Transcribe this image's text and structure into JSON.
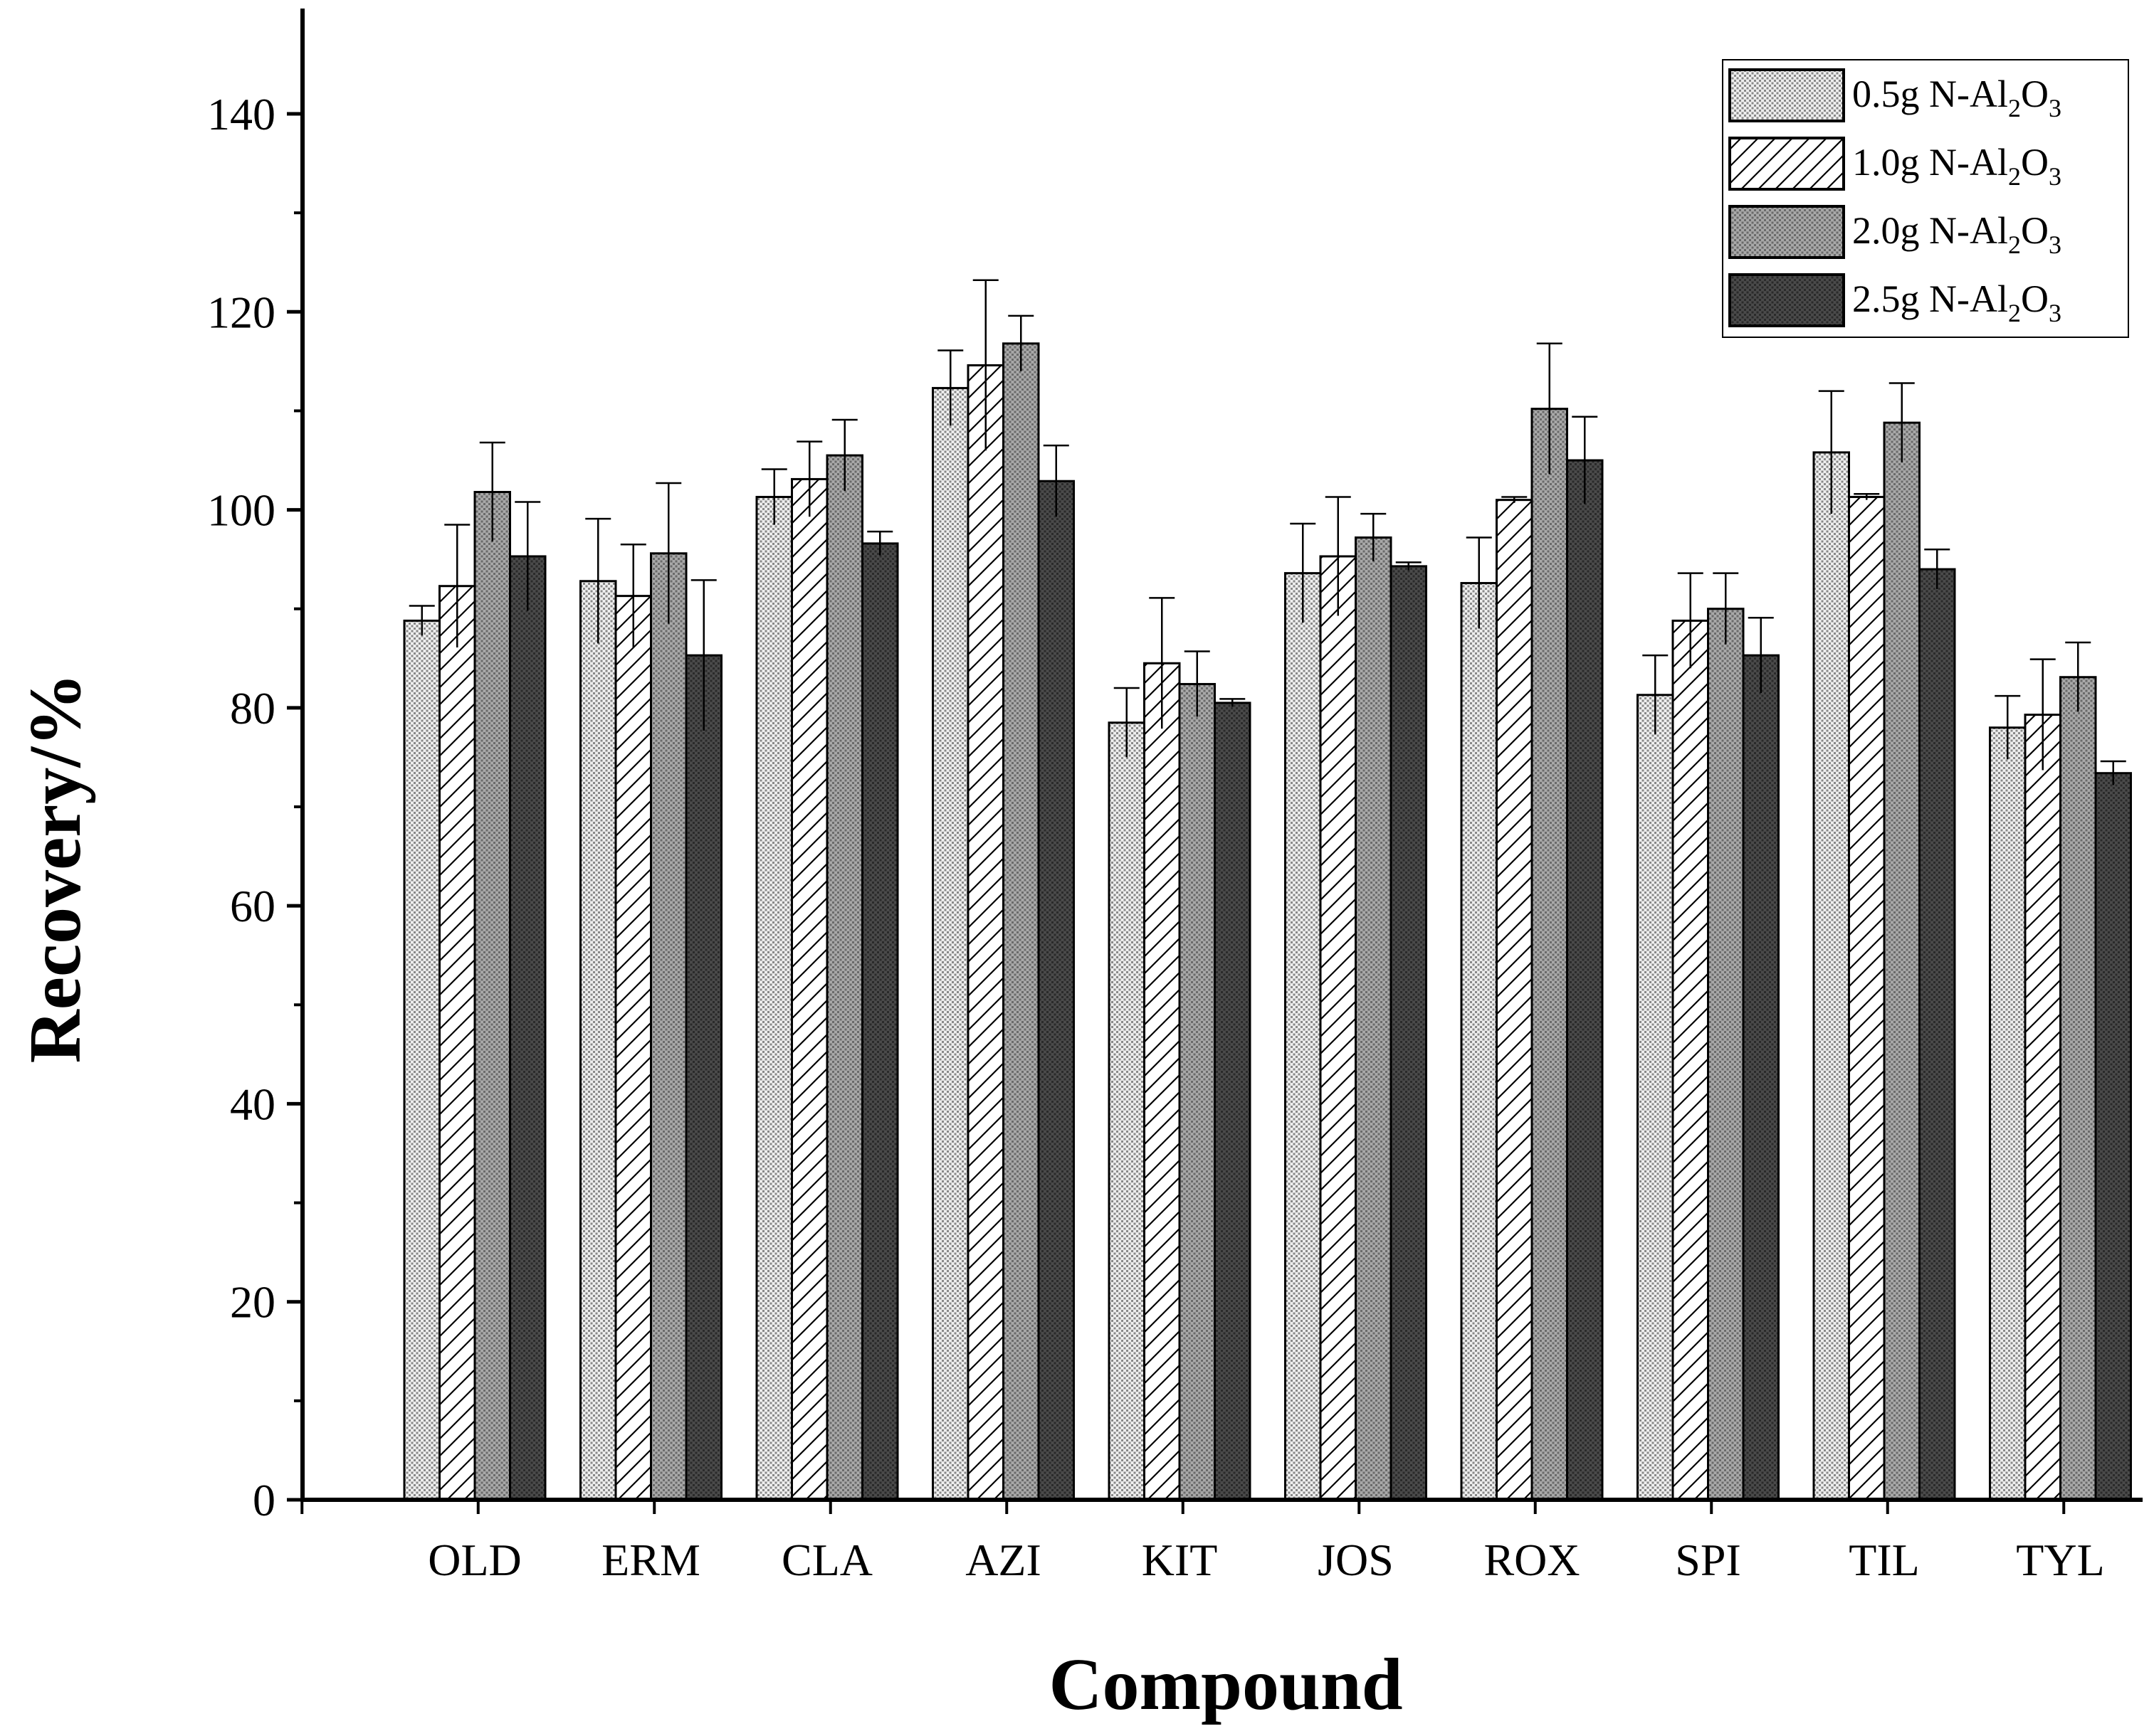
{
  "chart_data": {
    "type": "bar",
    "title": "",
    "xlabel": "Compound",
    "ylabel": "Recovery/%",
    "ylim": [
      0,
      150
    ],
    "yticks": [
      "0",
      "20",
      "40",
      "60",
      "80",
      "100",
      "120",
      "140"
    ],
    "categories": [
      "OLD",
      "ERM",
      "CLA",
      "AZI",
      "KIT",
      "JOS",
      "ROX",
      "SPI",
      "TIL",
      "TYL"
    ],
    "legend_position": "top-right",
    "grid": false,
    "series": [
      {
        "name": "0.5g N-Al2O3",
        "label_main": "0.5g N-Al",
        "label_sub1": "2",
        "label_mid": "O",
        "label_sub2": "3",
        "pattern": "fine-dots",
        "values": [
          88.8,
          92.8,
          101.3,
          112.3,
          78.5,
          93.6,
          92.6,
          81.3,
          105.8,
          78.0
        ],
        "errors": [
          1.5,
          6.3,
          2.8,
          3.8,
          3.5,
          5.0,
          4.6,
          4.0,
          6.2,
          3.2
        ]
      },
      {
        "name": "1.0g N-Al2O3",
        "label_main": "1.0g N-Al",
        "label_sub1": "2",
        "label_mid": "O",
        "label_sub2": "3",
        "pattern": "diagonal-hatch",
        "values": [
          92.3,
          91.3,
          103.1,
          114.6,
          84.5,
          95.3,
          101.0,
          88.8,
          101.3,
          79.3
        ],
        "errors": [
          6.2,
          5.2,
          3.8,
          8.6,
          6.6,
          6.0,
          0.3,
          4.8,
          0.3,
          5.6
        ]
      },
      {
        "name": "2.0g N-Al2O3",
        "label_main": "2.0g N-Al",
        "label_sub1": "2",
        "label_mid": "O",
        "label_sub2": "3",
        "pattern": "medium-dots",
        "values": [
          101.8,
          95.6,
          105.5,
          116.8,
          82.4,
          97.2,
          110.2,
          90.0,
          108.8,
          83.1
        ],
        "errors": [
          5.0,
          7.1,
          3.6,
          2.8,
          3.3,
          2.4,
          6.6,
          3.6,
          4.0,
          3.5
        ]
      },
      {
        "name": "2.5g N-Al2O3",
        "label_main": "2.5g N-Al",
        "label_sub1": "2",
        "label_mid": "O",
        "label_sub2": "3",
        "pattern": "dark-dots",
        "values": [
          95.3,
          85.3,
          96.6,
          102.9,
          80.5,
          94.3,
          105.0,
          85.3,
          94.0,
          73.4
        ],
        "errors": [
          5.5,
          7.6,
          1.2,
          3.6,
          0.4,
          0.4,
          4.4,
          3.8,
          2.0,
          1.2
        ]
      }
    ]
  }
}
